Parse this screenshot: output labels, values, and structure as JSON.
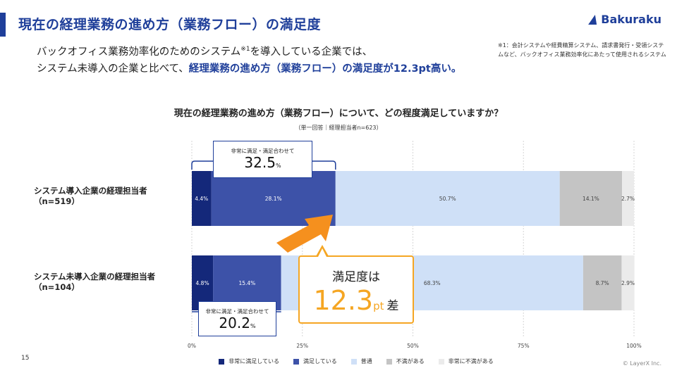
{
  "header": {
    "title": "現在の経理業務の進め方（業務フロー）の満足度",
    "logo_text": "Bakuraku"
  },
  "lead": {
    "line1_a": "バックオフィス業務効率化のためのシステム",
    "line1_sup": "※1",
    "line1_b": "を導入している企業では、",
    "line2_a": "システム未導入の企業と比べて、",
    "line2_hl": "経理業務の進め方（業務フロー）の満足度が12.3pt高い。"
  },
  "footnote": "※1：会計システムや経費精算システム、請求書発行・受領システムなど、バックオフィス業務効率化にあたって使用されるシステム",
  "chart_data": {
    "type": "bar",
    "orientation": "horizontal",
    "stacked": true,
    "title": "現在の経理業務の進め方（業務フロー）について、どの程度満足していますか？",
    "subtitle": "（単一回答｜経理担当者n=623）",
    "categories": [
      "システム導入企業の経理担当者\n（n=519）",
      "システム未導入企業の経理担当者\n（n=104）"
    ],
    "series": [
      {
        "name": "非常に満足している",
        "color": "#14287a",
        "values": [
          4.4,
          4.8
        ],
        "labels": [
          "4.4%",
          "4.8%"
        ]
      },
      {
        "name": "満足している",
        "color": "#3d52a8",
        "values": [
          28.1,
          15.4
        ],
        "labels": [
          "28.1%",
          "15.4%"
        ]
      },
      {
        "name": "普通",
        "color": "#cfe0f7",
        "values": [
          50.7,
          68.3
        ],
        "labels": [
          "50.7%",
          "68.3%"
        ]
      },
      {
        "name": "不満がある",
        "color": "#c4c4c4",
        "values": [
          14.1,
          8.7
        ],
        "labels": [
          "14.1%",
          "8.7%"
        ]
      },
      {
        "name": "非常に不満がある",
        "color": "#ebebeb",
        "values": [
          2.7,
          2.9
        ],
        "labels": [
          "2.7%",
          "2.9%"
        ]
      }
    ],
    "xlim": [
      0,
      100
    ],
    "x_ticks": [
      "0%",
      "25%",
      "50%",
      "75%",
      "100%"
    ],
    "grid": true,
    "legend_position": "bottom"
  },
  "callouts": [
    {
      "label": "非常に満足・満足合わせて",
      "value": "32.5",
      "unit": "%"
    },
    {
      "label": "非常に満足・満足合わせて",
      "value": "20.2",
      "unit": "%"
    }
  ],
  "difference": {
    "top": "満足度は",
    "value": "12.3",
    "unit": "pt",
    "suffix": "差",
    "accent_color": "#f5a623"
  },
  "footer": {
    "page_number": "15",
    "copyright": "© LayerX Inc."
  }
}
